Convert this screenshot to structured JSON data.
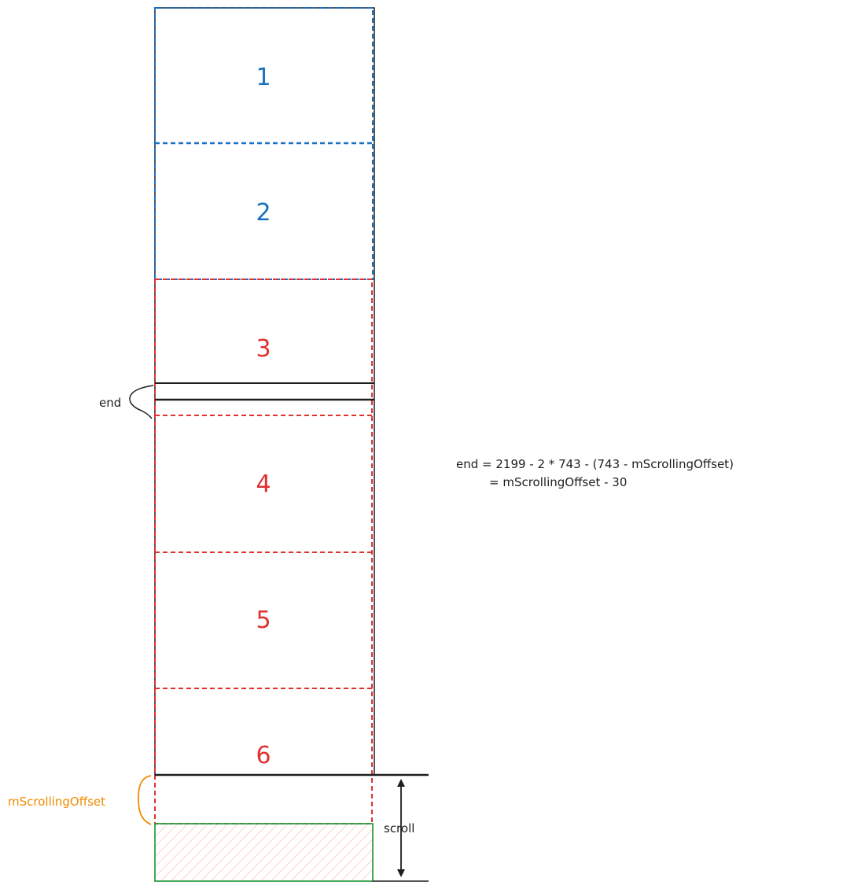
{
  "colors": {
    "ink": "#1e1e1e",
    "blue": "#1971c2",
    "red": "#e03131",
    "orange": "#f08c00",
    "green": "#2f9e44",
    "hatch": "#ffc9c9"
  },
  "segments": [
    {
      "label": "1",
      "color": "blue"
    },
    {
      "label": "2",
      "color": "blue"
    },
    {
      "label": "3",
      "color": "red"
    },
    {
      "label": "4",
      "color": "red"
    },
    {
      "label": "5",
      "color": "red"
    },
    {
      "label": "6",
      "color": "red"
    }
  ],
  "labels": {
    "end": "end",
    "scrolling_offset": "mScrollingOffset",
    "scroll": "scroll"
  },
  "formula": {
    "line1": "end = 2199 - 2 * 743 - (743 - mScrollingOffset)",
    "line2": "= mScrollingOffset - 30"
  }
}
